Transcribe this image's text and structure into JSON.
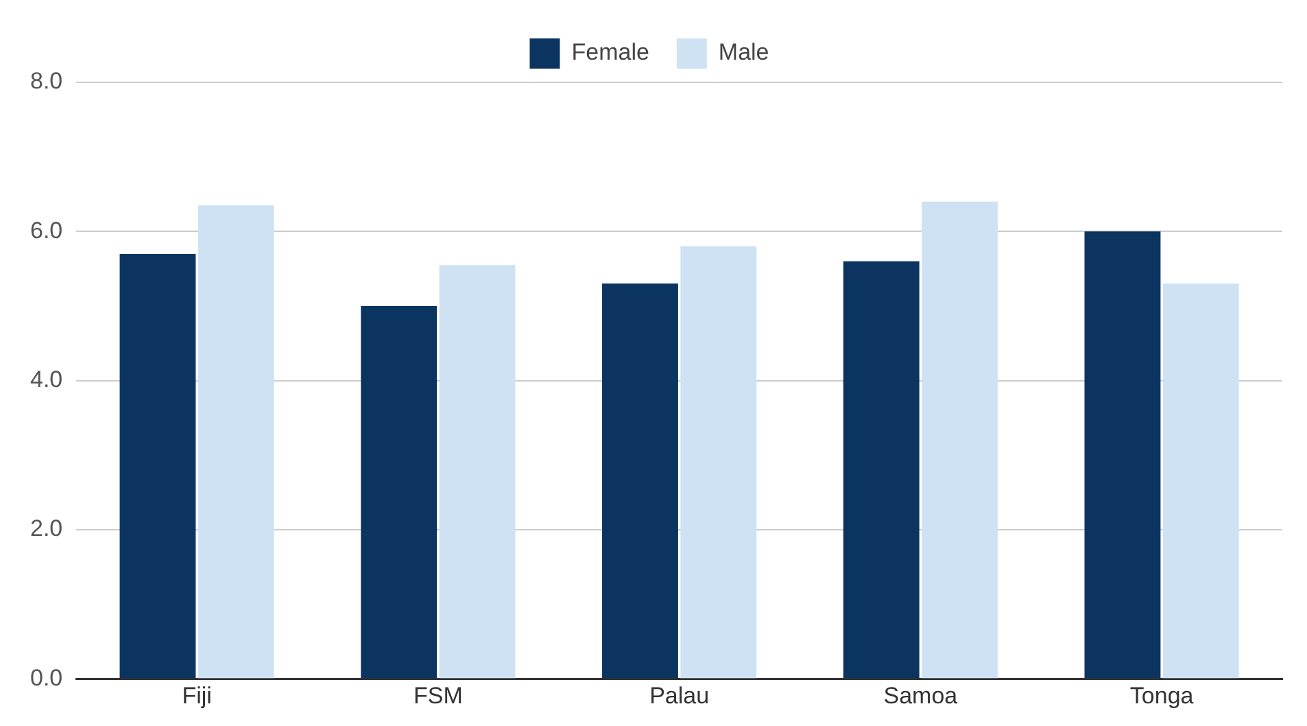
{
  "chart_data": {
    "type": "bar",
    "categories": [
      "Fiji",
      "FSM",
      "Palau",
      "Samoa",
      "Tonga"
    ],
    "series": [
      {
        "name": "Female",
        "color": "#0b3560",
        "values": [
          5.7,
          5.0,
          5.3,
          5.6,
          6.0
        ]
      },
      {
        "name": "Male",
        "color": "#cfe2f3",
        "values": [
          6.35,
          5.55,
          5.8,
          6.4,
          5.3
        ]
      }
    ],
    "ylim": [
      0,
      8
    ],
    "yticks": [
      {
        "value": 0,
        "label": "0.0"
      },
      {
        "value": 2,
        "label": "2.0"
      },
      {
        "value": 4,
        "label": "4.0"
      },
      {
        "value": 6,
        "label": "6.0"
      },
      {
        "value": 8,
        "label": "8.0"
      }
    ],
    "grid": "y",
    "legend": "top"
  }
}
